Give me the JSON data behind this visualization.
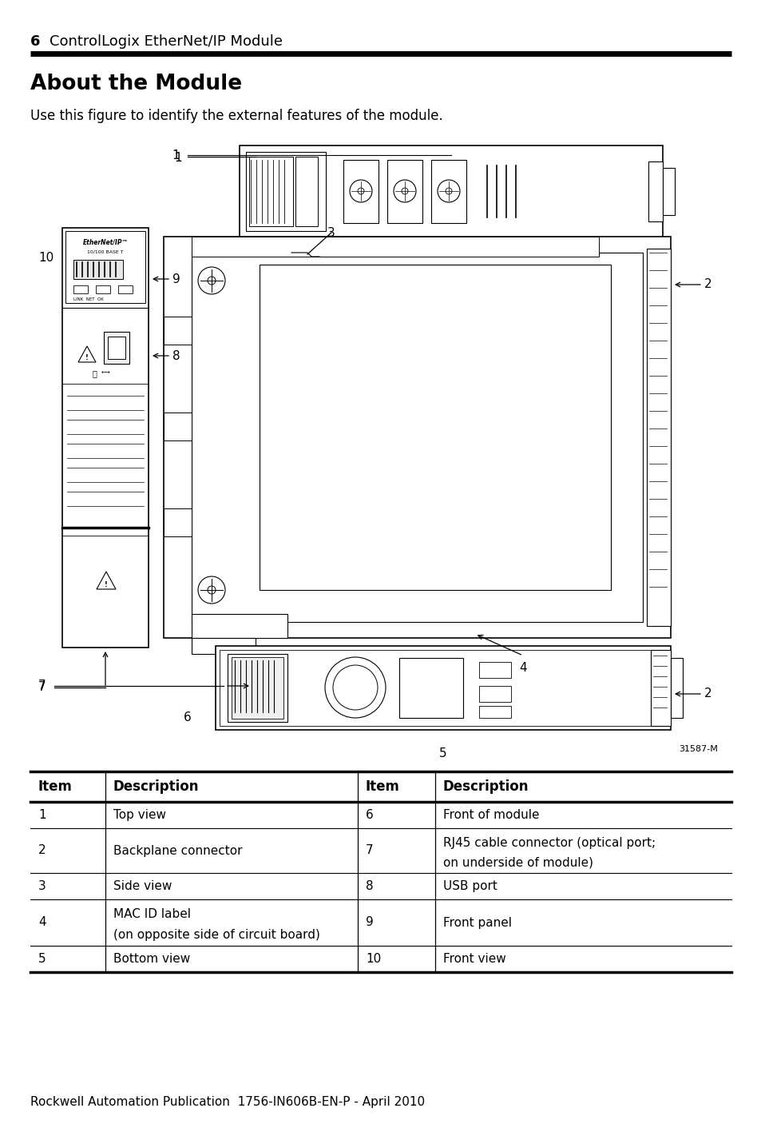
{
  "page_number": "6",
  "header_text": "ControlLogix EtherNet/IP Module",
  "section_title": "About the Module",
  "intro_text": "Use this figure to identify the external features of the module.",
  "footer_text": "Rockwell Automation Publication  1756-IN606B-EN-P - April 2010",
  "figure_label": "31587-M",
  "bg_color": "#ffffff",
  "table_headers": [
    "Item",
    "Description",
    "Item",
    "Description"
  ],
  "table_rows": [
    [
      "1",
      "Top view",
      "6",
      "Front of module"
    ],
    [
      "2",
      "Backplane connector",
      "7",
      "RJ45 cable connector (optical port;\non underside of module)"
    ],
    [
      "3",
      "Side view",
      "8",
      "USB port"
    ],
    [
      "4",
      "MAC ID label\n(on opposite side of circuit board)",
      "9",
      "Front panel"
    ],
    [
      "5",
      "Bottom view",
      "10",
      "Front view"
    ]
  ]
}
